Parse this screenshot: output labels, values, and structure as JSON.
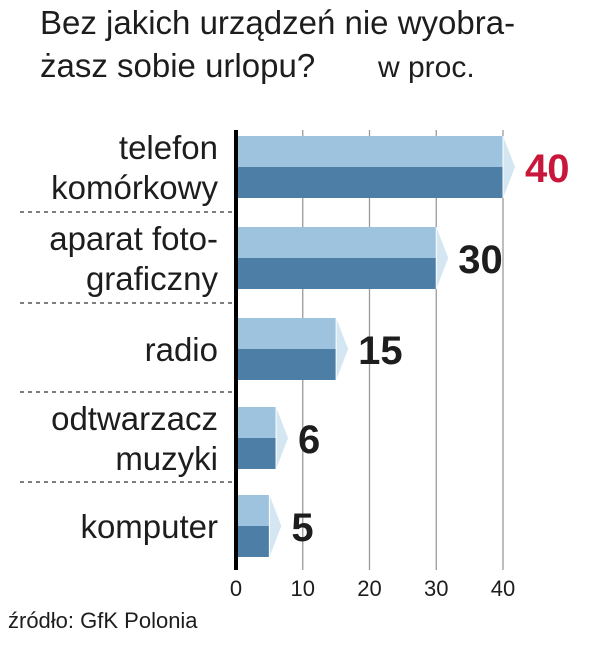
{
  "chart_data": {
    "type": "bar",
    "orientation": "horizontal",
    "title_lines": [
      "Bez jakich urządzeń nie wyobra-",
      "żasz sobie urlopu?"
    ],
    "unit": "w proc.",
    "categories": [
      [
        "telefon",
        "komórkowy"
      ],
      [
        "aparat foto-",
        "graficzny"
      ],
      [
        "radio"
      ],
      [
        "odtwarzacz",
        "muzyki"
      ],
      [
        "komputer"
      ]
    ],
    "values": [
      40,
      30,
      15,
      6,
      5
    ],
    "value_labels": [
      "40",
      "30",
      "15",
      "6",
      "5"
    ],
    "xlim": [
      0,
      40
    ],
    "xticks": [
      0,
      10,
      20,
      30,
      40
    ],
    "grid": true,
    "source": "źródło: GfK Polonia",
    "colors": {
      "bar_top": "#9dc3de",
      "bar_bottom": "#4d7fa6",
      "bar_tip": "#d3e6f2",
      "highlight_value": "#c8173a",
      "value_text": "#1d1d1d",
      "grid": "#9a9a9a",
      "axis": "#000000"
    }
  }
}
